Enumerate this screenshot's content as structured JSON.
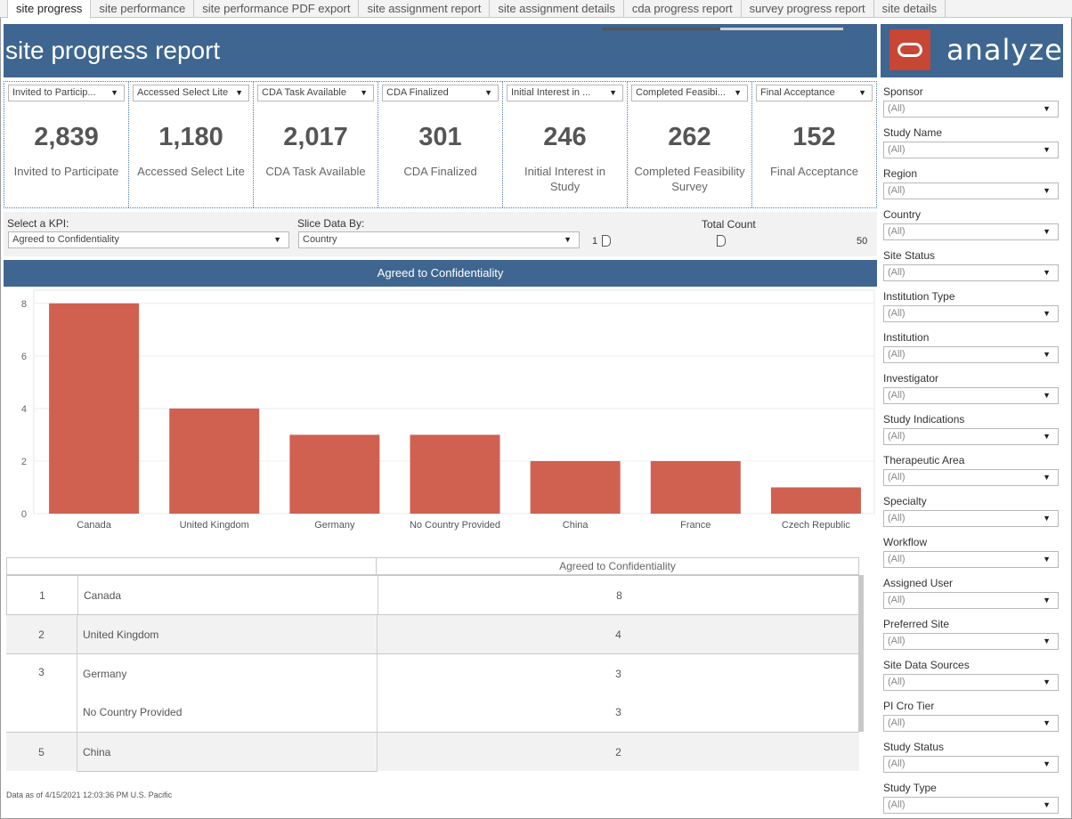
{
  "tabs": [
    "site progress",
    "site performance",
    "site performance PDF export",
    "site assignment report",
    "site assignment details",
    "cda progress report",
    "survey progress report",
    "site details"
  ],
  "header": {
    "title": "site progress report",
    "brand": "analyze"
  },
  "kpis": [
    {
      "dropdown": "Invited to Particip...",
      "value": "2,839",
      "label": "Invited to Participate"
    },
    {
      "dropdown": "Accessed Select Lite",
      "value": "1,180",
      "label": "Accessed Select Lite"
    },
    {
      "dropdown": "CDA Task Available",
      "value": "2,017",
      "label": "CDA Task Available"
    },
    {
      "dropdown": "CDA Finalized",
      "value": "301",
      "label": "CDA Finalized"
    },
    {
      "dropdown": "Initial Interest in ...",
      "value": "246",
      "label": "Initial Interest in Study"
    },
    {
      "dropdown": "Completed Feasibi...",
      "value": "262",
      "label": "Completed Feasibility Survey"
    },
    {
      "dropdown": "Final Acceptance",
      "value": "152",
      "label": "Final Acceptance"
    }
  ],
  "controls": {
    "kpi_label": "Select a KPI:",
    "kpi_value": "Agreed to Confidentiality",
    "slice_label": "Slice Data By:",
    "slice_value": "Country",
    "count_label": "Total Count",
    "slider_min": "1",
    "slider_max": "50",
    "slider_value": 25
  },
  "chart_data": {
    "type": "bar",
    "title": "Agreed to Confidentiality",
    "categories": [
      "Canada",
      "United Kingdom",
      "Germany",
      "No Country Provided",
      "China",
      "France",
      "Czech Republic"
    ],
    "values": [
      8,
      4,
      3,
      3,
      2,
      2,
      1
    ],
    "ylim": [
      0,
      8.5
    ],
    "yticks": [
      "0",
      "2",
      "4",
      "6",
      "8"
    ],
    "xlabel": "",
    "ylabel": "",
    "color": "#d06050"
  },
  "table": {
    "header": "Agreed to Confidentiality",
    "rows": [
      {
        "rank": "1",
        "name": "Canada",
        "value": "8"
      },
      {
        "rank": "2",
        "name": "United Kingdom",
        "value": "4"
      },
      {
        "rank": "3",
        "name": "Germany",
        "value": "3"
      },
      {
        "rank": "",
        "name": "No Country Provided",
        "value": "3"
      },
      {
        "rank": "5",
        "name": "China",
        "value": "2"
      }
    ]
  },
  "footnote": "Data as of 4/15/2021 12:03:36 PM U.S. Pacific",
  "filters": [
    {
      "label": "Sponsor",
      "value": "(All)"
    },
    {
      "label": "Study Name",
      "value": "(All)"
    },
    {
      "label": "Region",
      "value": "(All)"
    },
    {
      "label": "Country",
      "value": "(All)"
    },
    {
      "label": "Site Status",
      "value": "(All)"
    },
    {
      "label": "Institution Type",
      "value": "(All)"
    },
    {
      "label": "Institution",
      "value": "(All)"
    },
    {
      "label": "Investigator",
      "value": "(All)"
    },
    {
      "label": "Study Indications",
      "value": "(All)"
    },
    {
      "label": "Therapeutic Area",
      "value": "(All)"
    },
    {
      "label": "Specialty",
      "value": "(All)"
    },
    {
      "label": "Workflow",
      "value": "(All)"
    },
    {
      "label": "Assigned User",
      "value": "(All)"
    },
    {
      "label": "Preferred Site",
      "value": "(All)"
    },
    {
      "label": "Site Data Sources",
      "value": "(All)"
    },
    {
      "label": "PI Cro Tier",
      "value": "(All)"
    },
    {
      "label": "Study Status",
      "value": "(All)"
    },
    {
      "label": "Study Type",
      "value": "(All)"
    }
  ]
}
